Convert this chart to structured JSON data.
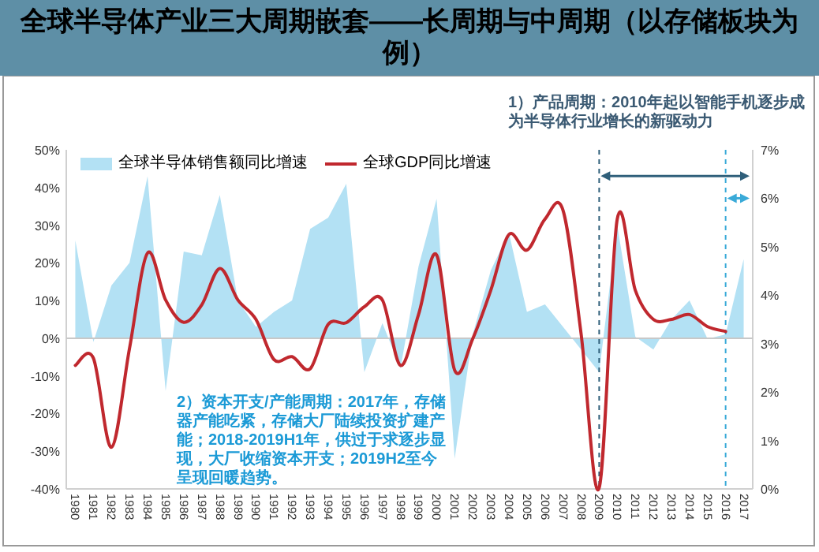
{
  "chart_data": {
    "type": "area",
    "title": "全球半导体产业三大周期嵌套——长周期与中周期（以存储板块为例）",
    "categories": [
      "1980",
      "1981",
      "1982",
      "1983",
      "1984",
      "1985",
      "1986",
      "1987",
      "1988",
      "1989",
      "1990",
      "1991",
      "1992",
      "1993",
      "1994",
      "1995",
      "1996",
      "1997",
      "1998",
      "1999",
      "2000",
      "2001",
      "2002",
      "2003",
      "2004",
      "2005",
      "2006",
      "2007",
      "2008",
      "2009",
      "2010",
      "2011",
      "2012",
      "2013",
      "2014",
      "2015",
      "2016",
      "2017"
    ],
    "series": [
      {
        "name": "全球半导体销售额同比增速",
        "type": "area",
        "color": "#b3e1f4",
        "values": [
          26,
          -1,
          14,
          20,
          43,
          -14,
          23,
          22,
          38,
          10,
          3,
          7,
          10,
          29,
          32,
          41,
          -9,
          4,
          -8,
          19,
          37,
          -32,
          1,
          18,
          28,
          7,
          9,
          3,
          -3,
          -9,
          30,
          0.4,
          -3,
          5,
          10,
          -0.2,
          1,
          21
        ]
      },
      {
        "name": "全球GDP同比增速",
        "type": "line",
        "axis": "y2",
        "color": "#c0282e",
        "values": [
          2.55,
          2.7,
          0.86,
          2.9,
          4.87,
          3.9,
          3.44,
          3.8,
          4.55,
          3.9,
          3.5,
          2.67,
          2.73,
          2.48,
          3.4,
          3.43,
          3.76,
          3.9,
          2.55,
          3.6,
          4.83,
          2.45,
          3.1,
          4.1,
          5.25,
          4.93,
          5.57,
          5.75,
          3.2,
          0.02,
          5.57,
          4.1,
          3.5,
          3.5,
          3.6,
          3.35,
          3.25,
          null
        ]
      }
    ],
    "ylim": [
      -40,
      50
    ],
    "yticks": [
      {
        "value": -40,
        "label": "-40%"
      },
      {
        "value": -30,
        "label": "-30%"
      },
      {
        "value": -20,
        "label": "-20%"
      },
      {
        "value": -10,
        "label": "-10%"
      },
      {
        "value": 0,
        "label": "0%"
      },
      {
        "value": 10,
        "label": "10%"
      },
      {
        "value": 20,
        "label": "20%"
      },
      {
        "value": 30,
        "label": "30%"
      },
      {
        "value": 40,
        "label": "40%"
      },
      {
        "value": 50,
        "label": "50%"
      }
    ],
    "y2lim": [
      0,
      7
    ],
    "y2ticks": [
      {
        "value": 0,
        "label": "0%"
      },
      {
        "value": 1,
        "label": "1%"
      },
      {
        "value": 2,
        "label": "2%"
      },
      {
        "value": 3,
        "label": "3%"
      },
      {
        "value": 4,
        "label": "4%"
      },
      {
        "value": 5,
        "label": "5%"
      },
      {
        "value": 6,
        "label": "6%"
      },
      {
        "value": 7,
        "label": "7%"
      }
    ],
    "ref_lines": [
      {
        "axis": "x",
        "value": "2009",
        "color": "#2f5f7a",
        "line_style": "dashed"
      },
      {
        "axis": "x",
        "value": "2016",
        "color": "#3aaad8",
        "line_style": "dashed"
      }
    ],
    "annotations": [
      "1）产品周期：2010年起以智能手机逐步成为半导体行业增长的新驱动力",
      "2）资本开支/产能周期：2017年，存储器产能吃紧，存储大厂陆续投资扩建产能；2018-2019H1年，供过于求逐步显现，大厂收缩资本开支；2019H2至今呈现回暖趋势。"
    ],
    "legend": "top left"
  }
}
